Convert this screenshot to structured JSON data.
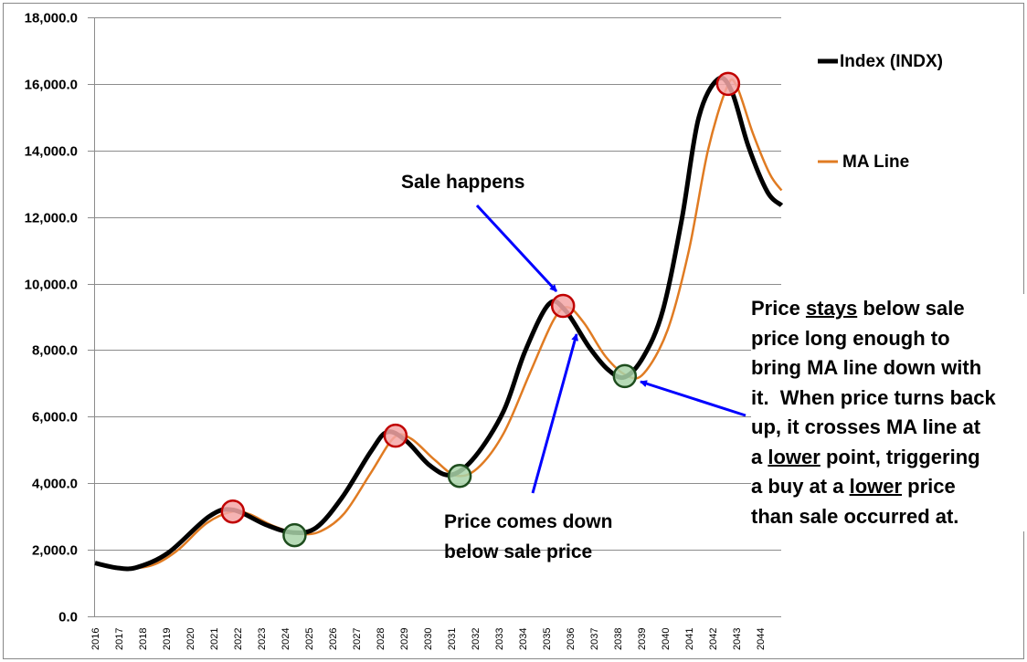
{
  "chart_data": {
    "type": "line",
    "title": "",
    "xlabel": "",
    "ylabel": "",
    "ylim": [
      0,
      18000
    ],
    "xlim": [
      2016,
      2044.9
    ],
    "grid": true,
    "legend_position": "right",
    "y_ticks": [
      "0.0",
      "2,000.0",
      "4,000.0",
      "6,000.0",
      "8,000.0",
      "10,000.0",
      "12,000.0",
      "14,000.0",
      "16,000.0",
      "18,000.0"
    ],
    "x_ticks": [
      "2016",
      "2017",
      "2018",
      "2019",
      "2020",
      "2021",
      "2022",
      "2023",
      "2024",
      "2025",
      "2026",
      "2027",
      "2028",
      "2029",
      "2030",
      "2031",
      "2032",
      "2033",
      "2034",
      "2035",
      "2036",
      "2037",
      "2038",
      "2039",
      "2040",
      "2041",
      "2042",
      "2043",
      "2044"
    ],
    "series": [
      {
        "name": "Index (INDX)",
        "color": "#000000",
        "x": [
          2016.0,
          2017.0,
          2017.8,
          2019.1,
          2020.8,
          2021.8,
          2023.2,
          2024.3,
          2025.3,
          2026.4,
          2027.6,
          2028.3,
          2029.1,
          2030.1,
          2031.0,
          2032.0,
          2033.2,
          2034.1,
          2035.1,
          2035.8,
          2036.8,
          2037.6,
          2038.3,
          2039.1,
          2039.9,
          2040.7,
          2041.4,
          2042.2,
          2042.8,
          2043.5,
          2044.3,
          2044.9
        ],
        "values": [
          1600,
          1450,
          1480,
          1920,
          3000,
          3200,
          2750,
          2520,
          2660,
          3570,
          4940,
          5540,
          5270,
          4530,
          4250,
          4800,
          6170,
          7960,
          9380,
          9190,
          8090,
          7410,
          7190,
          7820,
          9190,
          11930,
          14950,
          16130,
          15780,
          14130,
          12760,
          12350
        ]
      },
      {
        "name": "MA Line",
        "color": "#E07B22",
        "x": [
          2016.6,
          2017.5,
          2018.5,
          2019.5,
          2020.7,
          2021.8,
          2022.5,
          2023.5,
          2024.6,
          2025.5,
          2026.5,
          2027.6,
          2028.6,
          2029.3,
          2030.3,
          2031.2,
          2032.1,
          2033.2,
          2034.3,
          2035.3,
          2035.9,
          2036.6,
          2037.5,
          2038.4,
          2039.1,
          2040.1,
          2041.0,
          2041.8,
          2042.6,
          2043.0,
          2043.7,
          2044.4,
          2044.9
        ],
        "values": [
          1480,
          1440,
          1560,
          2000,
          2800,
          3150,
          3070,
          2720,
          2480,
          2560,
          3100,
          4300,
          5380,
          5340,
          4700,
          4230,
          4450,
          5500,
          7300,
          8900,
          9290,
          8800,
          7800,
          7230,
          7300,
          8600,
          11000,
          14000,
          15900,
          15950,
          14500,
          13300,
          12800
        ]
      }
    ],
    "markers": {
      "sell": {
        "color": "#F4A6A6",
        "stroke": "#C00000",
        "points": [
          [
            2021.8,
            3150
          ],
          [
            2028.65,
            5430
          ],
          [
            2035.7,
            9330
          ],
          [
            2042.65,
            16000
          ]
        ]
      },
      "buy": {
        "color": "#A9D3A9",
        "stroke": "#1E4D1E",
        "points": [
          [
            2024.4,
            2440
          ],
          [
            2031.35,
            4220
          ],
          [
            2038.3,
            7220
          ]
        ]
      }
    },
    "annotations": {
      "sale_happens": "Sale happens",
      "price_down_1": "Price comes down",
      "price_down_2": "below sale price",
      "box": {
        "l1a": "Price ",
        "l1u": "stays",
        "l1b": " below sale",
        "l2": "price long enough to",
        "l3": "bring MA line down with",
        "l4": "it.  When price turns back",
        "l5": "up, it crosses MA line at",
        "l6a": "a ",
        "l6u": "lower",
        "l6b": " point, triggering",
        "l7a": "a buy at a ",
        "l7u": "lower",
        "l7b": " price",
        "l8": "than sale occurred at."
      },
      "arrow_color": "#0000FF"
    }
  }
}
